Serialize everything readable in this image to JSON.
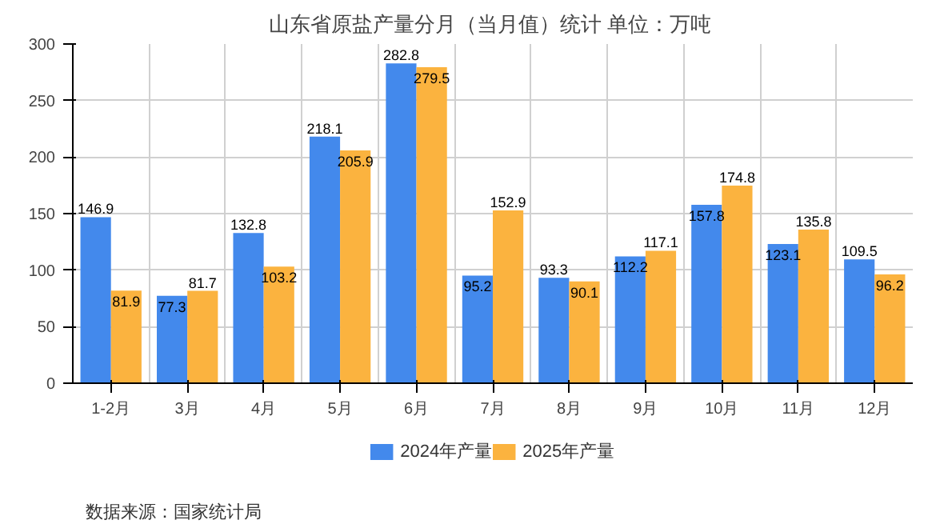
{
  "chart_data": {
    "type": "bar",
    "title": "山东省原盐产量分月（当月值）统计  单位：万吨",
    "categories": [
      "1-2月",
      "3月",
      "4月",
      "5月",
      "6月",
      "7月",
      "8月",
      "9月",
      "10月",
      "11月",
      "12月"
    ],
    "series": [
      {
        "name": "2024年产量",
        "color": "#4389ec",
        "values": [
          146.9,
          77.3,
          132.8,
          218.1,
          282.8,
          95.2,
          93.3,
          112.2,
          157.8,
          123.1,
          109.5
        ]
      },
      {
        "name": "2025年产量",
        "color": "#fbb33f",
        "values": [
          81.9,
          81.7,
          103.2,
          205.9,
          279.5,
          152.9,
          90.1,
          117.1,
          174.8,
          135.8,
          96.2
        ]
      }
    ],
    "ylim": [
      0,
      300
    ],
    "yticks": [
      0,
      50,
      100,
      150,
      200,
      250,
      300
    ],
    "grid": true,
    "legend": "bottom",
    "data_labels": true,
    "annotations": [
      "数据来源：国家统计局"
    ]
  }
}
